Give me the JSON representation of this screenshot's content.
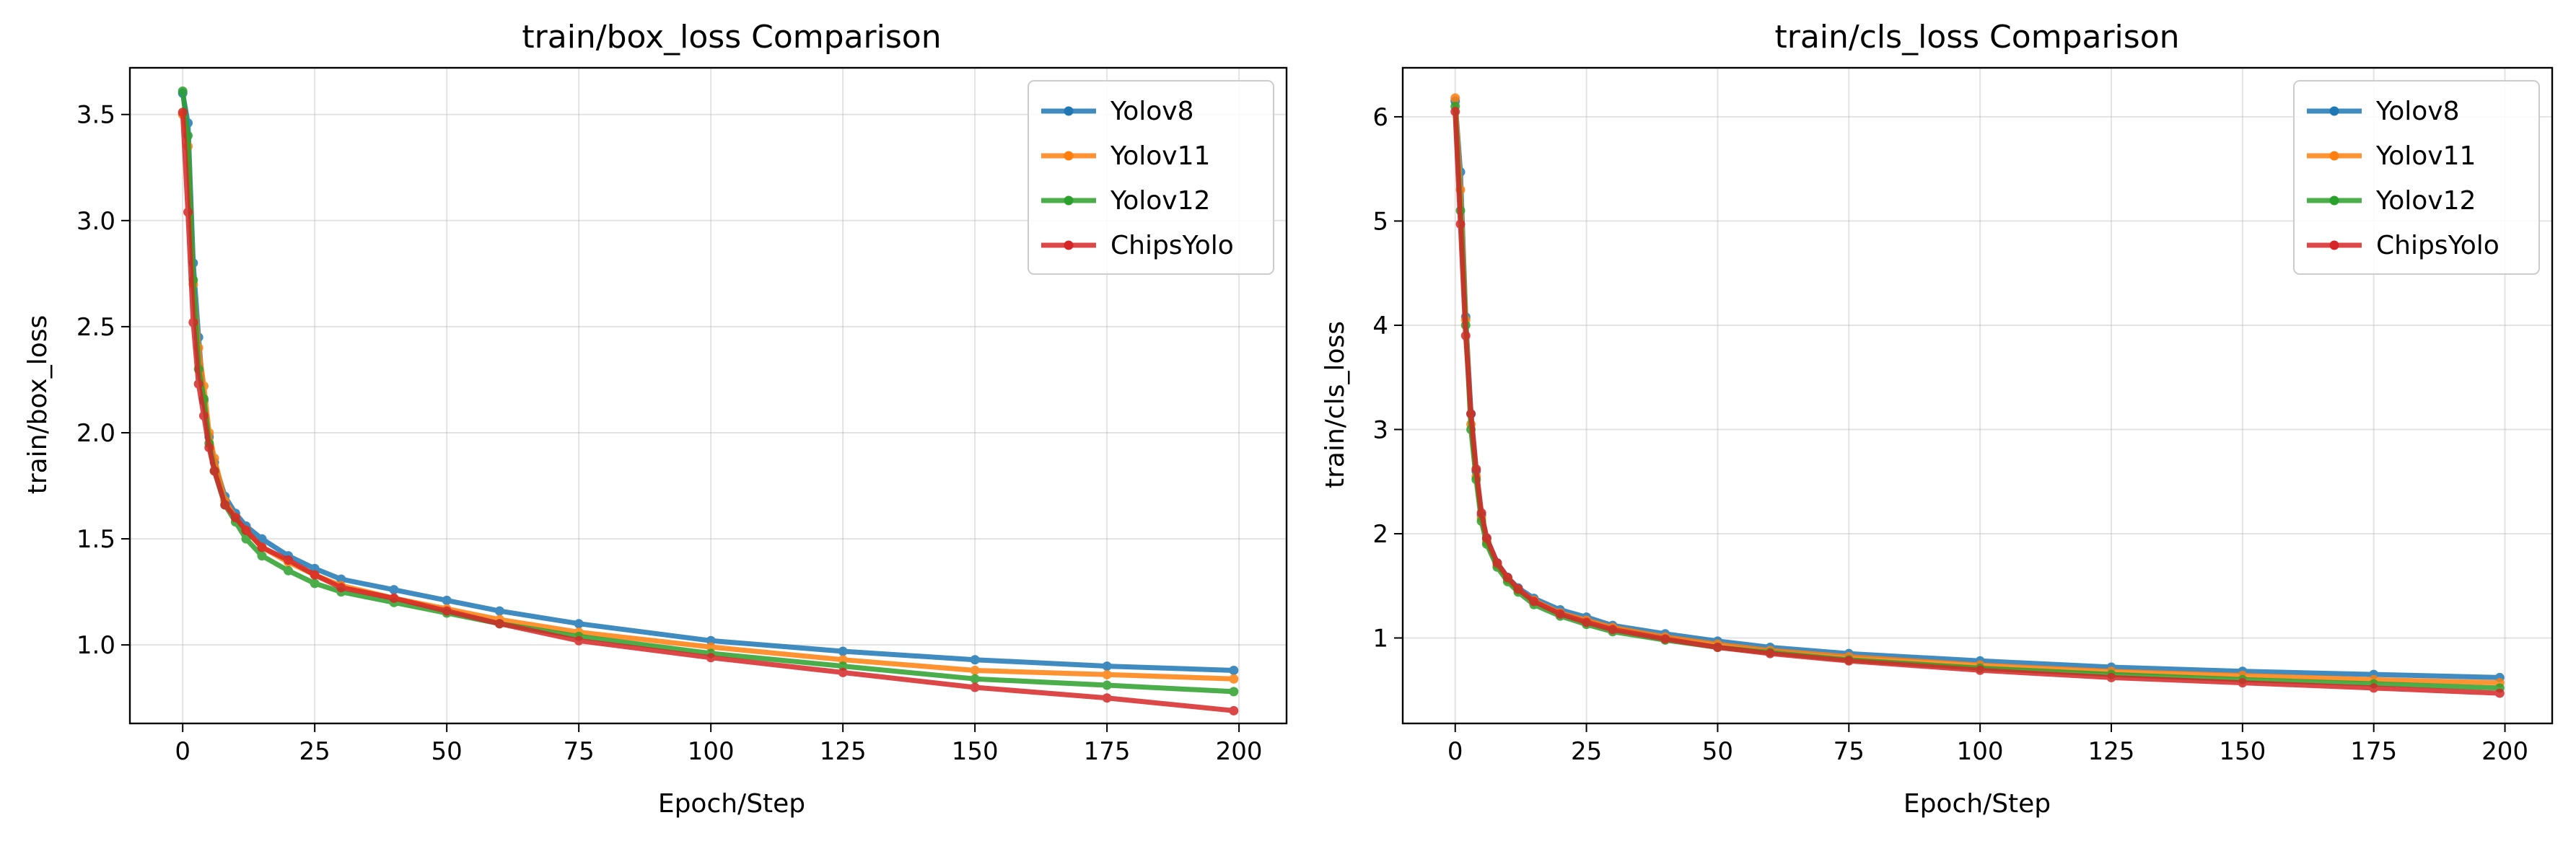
{
  "chart_data": [
    {
      "type": "line",
      "title": "train/box_loss Comparison",
      "xlabel": "Epoch/Step",
      "ylabel": "train/box_loss",
      "xlim": [
        -10,
        209
      ],
      "ylim": [
        0.63,
        3.72
      ],
      "xticks": [
        "0",
        "25",
        "50",
        "75",
        "100",
        "125",
        "150",
        "175",
        "200"
      ],
      "yticks": [
        "1.0",
        "1.5",
        "2.0",
        "2.5",
        "3.0",
        "3.5"
      ],
      "grid": true,
      "legend_position": "top-right",
      "x": [
        0,
        1,
        2,
        3,
        4,
        5,
        6,
        8,
        10,
        12,
        15,
        20,
        25,
        30,
        40,
        50,
        60,
        75,
        100,
        125,
        150,
        175,
        199
      ],
      "series": [
        {
          "name": "Yolov8",
          "color": "#1f77b4",
          "values": [
            3.6,
            3.46,
            2.8,
            2.45,
            2.15,
            1.98,
            1.86,
            1.7,
            1.62,
            1.56,
            1.5,
            1.42,
            1.36,
            1.31,
            1.26,
            1.21,
            1.16,
            1.1,
            1.02,
            0.97,
            0.93,
            0.9,
            0.88
          ]
        },
        {
          "name": "Yolov11",
          "color": "#ff7f0e",
          "values": [
            3.5,
            3.35,
            2.7,
            2.4,
            2.22,
            2.0,
            1.88,
            1.68,
            1.6,
            1.54,
            1.46,
            1.39,
            1.33,
            1.28,
            1.22,
            1.17,
            1.12,
            1.06,
            0.99,
            0.93,
            0.88,
            0.86,
            0.84
          ]
        },
        {
          "name": "Yolov12",
          "color": "#2ca02c",
          "values": [
            3.61,
            3.4,
            2.72,
            2.3,
            2.16,
            1.95,
            1.82,
            1.66,
            1.58,
            1.5,
            1.42,
            1.35,
            1.29,
            1.25,
            1.2,
            1.15,
            1.1,
            1.04,
            0.96,
            0.9,
            0.84,
            0.81,
            0.78
          ]
        },
        {
          "name": "ChipsYolo",
          "color": "#d62728",
          "values": [
            3.51,
            3.04,
            2.52,
            2.23,
            2.08,
            1.93,
            1.82,
            1.66,
            1.6,
            1.54,
            1.46,
            1.4,
            1.33,
            1.27,
            1.22,
            1.16,
            1.1,
            1.02,
            0.94,
            0.87,
            0.8,
            0.75,
            0.69
          ]
        }
      ]
    },
    {
      "type": "line",
      "title": "train/cls_loss Comparison",
      "xlabel": "Epoch/Step",
      "ylabel": "train/cls_loss",
      "xlim": [
        -10,
        209
      ],
      "ylim": [
        0.18,
        6.47
      ],
      "xticks": [
        "0",
        "25",
        "50",
        "75",
        "100",
        "125",
        "150",
        "175",
        "200"
      ],
      "yticks": [
        "1",
        "2",
        "3",
        "4",
        "5",
        "6"
      ],
      "grid": true,
      "legend_position": "top-right",
      "x": [
        0,
        1,
        2,
        3,
        4,
        5,
        6,
        8,
        10,
        12,
        15,
        20,
        25,
        30,
        40,
        50,
        60,
        75,
        100,
        125,
        150,
        175,
        199
      ],
      "series": [
        {
          "name": "Yolov8",
          "color": "#1f77b4",
          "values": [
            6.15,
            5.47,
            4.08,
            3.15,
            2.6,
            2.18,
            1.95,
            1.72,
            1.58,
            1.48,
            1.38,
            1.27,
            1.2,
            1.12,
            1.04,
            0.97,
            0.91,
            0.85,
            0.78,
            0.72,
            0.68,
            0.65,
            0.62
          ]
        },
        {
          "name": "Yolov11",
          "color": "#ff7f0e",
          "values": [
            6.18,
            5.3,
            4.05,
            3.05,
            2.55,
            2.15,
            1.92,
            1.7,
            1.56,
            1.46,
            1.36,
            1.24,
            1.17,
            1.1,
            1.01,
            0.94,
            0.88,
            0.82,
            0.74,
            0.68,
            0.64,
            0.6,
            0.57
          ]
        },
        {
          "name": "Yolov12",
          "color": "#2ca02c",
          "values": [
            6.1,
            5.1,
            4.0,
            3.0,
            2.52,
            2.12,
            1.9,
            1.68,
            1.54,
            1.44,
            1.32,
            1.21,
            1.13,
            1.06,
            0.98,
            0.91,
            0.86,
            0.79,
            0.71,
            0.65,
            0.6,
            0.56,
            0.52
          ]
        },
        {
          "name": "ChipsYolo",
          "color": "#d62728",
          "values": [
            6.05,
            4.97,
            3.9,
            3.15,
            2.62,
            2.2,
            1.96,
            1.72,
            1.58,
            1.47,
            1.35,
            1.23,
            1.15,
            1.08,
            0.99,
            0.91,
            0.85,
            0.78,
            0.69,
            0.62,
            0.57,
            0.52,
            0.47
          ]
        }
      ]
    }
  ]
}
